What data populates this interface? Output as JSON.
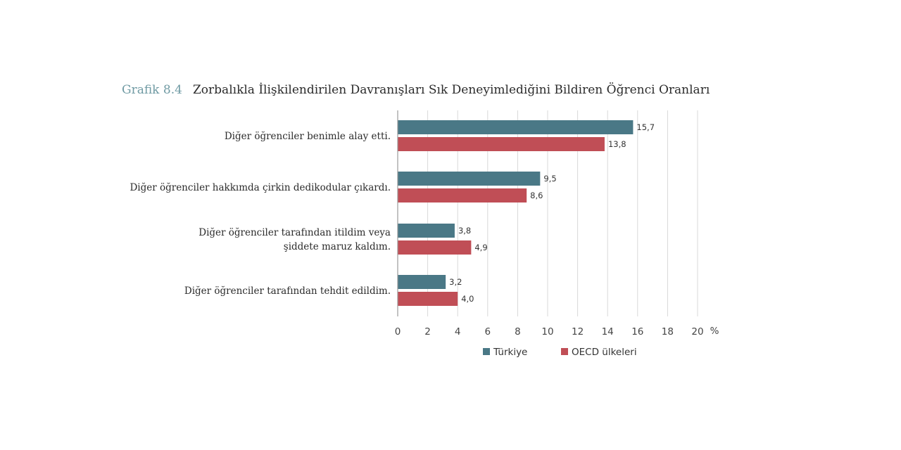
{
  "figure": {
    "label": "Grafik 8.4",
    "title": "Zorbalıkla İlişkilendirilen Davranışları Sık Deneyimlediğini Bildiren Öğrenci Oranları"
  },
  "chart_data": {
    "type": "bar",
    "orientation": "horizontal",
    "categories": [
      [
        "Diğer öğrenciler benimle alay etti."
      ],
      [
        "Diğer öğrenciler hakkımda çirkin dedikodular çıkardı."
      ],
      [
        "Diğer öğrenciler tarafından itildim veya",
        "şiddete maruz kaldım."
      ],
      [
        "Diğer öğrenciler tarafından tehdit edildim."
      ]
    ],
    "series": [
      {
        "name": "Türkiye",
        "color": "#4a7886",
        "values": [
          15.7,
          9.5,
          3.8,
          3.2
        ],
        "labels": [
          "15,7",
          "9,5",
          "3,8",
          "3,2"
        ]
      },
      {
        "name": "OECD ülkeleri",
        "color": "#c04e56",
        "values": [
          13.8,
          8.6,
          4.9,
          4.0
        ],
        "labels": [
          "13,8",
          "8,6",
          "4,9",
          "4,0"
        ]
      }
    ],
    "xlim": [
      0,
      20
    ],
    "xticks": [
      "0",
      "2",
      "4",
      "6",
      "8",
      "10",
      "12",
      "14",
      "16",
      "18",
      "20"
    ],
    "xunit": "%",
    "grid": true,
    "legend_position": "bottom"
  }
}
